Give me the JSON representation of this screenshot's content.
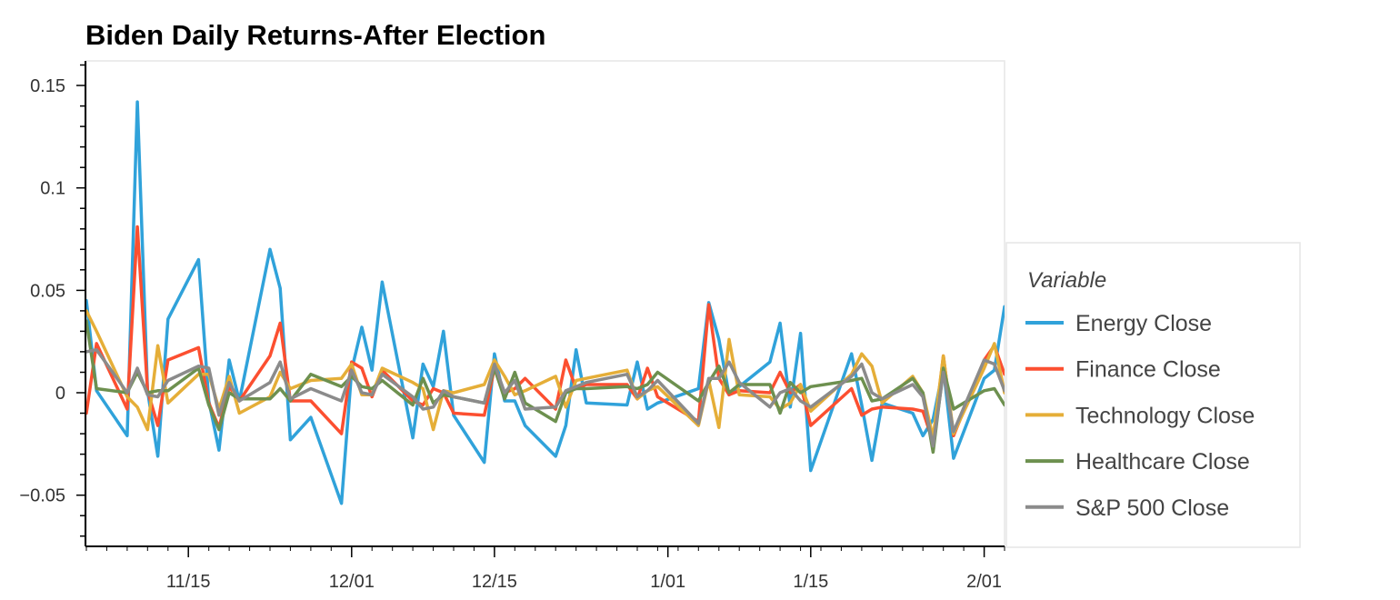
{
  "chart_data": {
    "type": "line",
    "title": "Biden Daily Returns-After Election",
    "xlabel": "",
    "ylabel": "",
    "x_range": [
      "2020-11-05",
      "2021-02-03"
    ],
    "ylim": [
      -0.075,
      0.162
    ],
    "x_ticks": [
      {
        "date": "2020-11-15",
        "label": "11/15"
      },
      {
        "date": "2020-12-01",
        "label": "12/01"
      },
      {
        "date": "2020-12-15",
        "label": "12/15"
      },
      {
        "date": "2021-01-01",
        "label": "1/01"
      },
      {
        "date": "2021-01-15",
        "label": "1/15"
      },
      {
        "date": "2021-02-01",
        "label": "2/01"
      }
    ],
    "y_ticks": [
      {
        "value": 0.15,
        "label": "0.15"
      },
      {
        "value": 0.1,
        "label": "0.1"
      },
      {
        "value": 0.05,
        "label": "0.05"
      },
      {
        "value": 0,
        "label": "0"
      },
      {
        "value": -0.05,
        "label": "−0.05"
      }
    ],
    "grid": false,
    "legend": {
      "title": "Variable",
      "position": "right"
    },
    "x": [
      "2020-11-05",
      "2020-11-06",
      "2020-11-09",
      "2020-11-10",
      "2020-11-11",
      "2020-11-12",
      "2020-11-13",
      "2020-11-16",
      "2020-11-17",
      "2020-11-18",
      "2020-11-19",
      "2020-11-20",
      "2020-11-23",
      "2020-11-24",
      "2020-11-25",
      "2020-11-27",
      "2020-11-30",
      "2020-12-01",
      "2020-12-02",
      "2020-12-03",
      "2020-12-04",
      "2020-12-07",
      "2020-12-08",
      "2020-12-09",
      "2020-12-10",
      "2020-12-11",
      "2020-12-14",
      "2020-12-15",
      "2020-12-16",
      "2020-12-17",
      "2020-12-18",
      "2020-12-21",
      "2020-12-22",
      "2020-12-23",
      "2020-12-24",
      "2020-12-28",
      "2020-12-29",
      "2020-12-30",
      "2020-12-31",
      "2021-01-04",
      "2021-01-05",
      "2021-01-06",
      "2021-01-07",
      "2021-01-08",
      "2021-01-11",
      "2021-01-12",
      "2021-01-13",
      "2021-01-14",
      "2021-01-15",
      "2021-01-19",
      "2021-01-20",
      "2021-01-21",
      "2021-01-22",
      "2021-01-25",
      "2021-01-26",
      "2021-01-27",
      "2021-01-28",
      "2021-01-29",
      "2021-02-01",
      "2021-02-02",
      "2021-02-03"
    ],
    "series": [
      {
        "name": "Energy Close",
        "color": "#30a2da",
        "values": [
          0.045,
          0.001,
          -0.021,
          0.142,
          0.001,
          -0.031,
          0.036,
          0.065,
          -0.004,
          -0.028,
          0.016,
          -0.004,
          0.07,
          0.051,
          -0.023,
          -0.012,
          -0.054,
          0.011,
          0.032,
          0.011,
          0.054,
          -0.022,
          0.014,
          0.003,
          0.03,
          -0.011,
          -0.034,
          0.019,
          -0.004,
          -0.004,
          -0.016,
          -0.031,
          -0.016,
          0.021,
          -0.005,
          -0.006,
          0.015,
          -0.008,
          -0.005,
          0.002,
          0.044,
          0.026,
          -0.001,
          0.003,
          0.015,
          0.034,
          -0.007,
          0.029,
          -0.038,
          0.019,
          -0.006,
          -0.033,
          -0.005,
          -0.01,
          -0.021,
          -0.013,
          0.012,
          -0.032,
          0.007,
          0.011,
          0.042
        ]
      },
      {
        "name": "Finance Close",
        "color": "#fc4f30",
        "values": [
          -0.01,
          0.024,
          -0.008,
          0.081,
          0.001,
          -0.016,
          0.016,
          0.022,
          -0.005,
          -0.017,
          0.003,
          -0.004,
          0.018,
          0.034,
          -0.004,
          -0.004,
          -0.02,
          0.015,
          0.012,
          -0.002,
          0.011,
          -0.004,
          -0.006,
          0.002,
          0.0,
          -0.01,
          -0.011,
          0.012,
          0.0,
          0.002,
          0.007,
          -0.008,
          0.016,
          0.002,
          0.004,
          0.004,
          -0.003,
          0.012,
          -0.002,
          -0.014,
          0.043,
          0.007,
          -0.001,
          0.001,
          0.0,
          0.01,
          0.0,
          0.004,
          -0.016,
          0.002,
          -0.011,
          -0.008,
          -0.007,
          -0.008,
          -0.009,
          -0.024,
          0.018,
          -0.021,
          0.016,
          0.023,
          0.009
        ]
      },
      {
        "name": "Technology Close",
        "color": "#e5ae38",
        "values": [
          0.04,
          0.03,
          -0.002,
          -0.007,
          -0.018,
          0.023,
          -0.005,
          0.009,
          0.009,
          -0.008,
          0.008,
          -0.01,
          -0.002,
          0.01,
          0.002,
          0.006,
          0.007,
          0.014,
          -0.001,
          -0.001,
          0.012,
          0.005,
          0.002,
          -0.018,
          0.001,
          0.0,
          0.004,
          0.016,
          0.008,
          -0.001,
          0.001,
          0.008,
          -0.007,
          0.006,
          0.007,
          0.011,
          -0.003,
          0.001,
          0.003,
          -0.016,
          0.006,
          -0.017,
          0.026,
          -0.001,
          -0.002,
          -0.008,
          -0.005,
          0.004,
          -0.009,
          0.009,
          0.019,
          0.013,
          -0.005,
          0.008,
          0.0,
          -0.022,
          0.018,
          -0.02,
          0.012,
          0.024,
          0.0
        ]
      },
      {
        "name": "Healthcare Close",
        "color": "#6d904f",
        "values": [
          0.035,
          0.002,
          0.0,
          0.01,
          0.0,
          0.001,
          0.001,
          0.012,
          -0.006,
          -0.018,
          0.0,
          -0.003,
          -0.003,
          0.002,
          -0.004,
          0.009,
          0.003,
          0.008,
          0.003,
          0.002,
          0.006,
          -0.006,
          0.007,
          -0.005,
          -0.001,
          -0.002,
          -0.005,
          0.012,
          -0.003,
          0.01,
          -0.005,
          -0.014,
          0.0,
          0.002,
          0.002,
          0.003,
          0.002,
          0.004,
          0.01,
          -0.004,
          0.005,
          0.013,
          0.0,
          0.004,
          0.004,
          -0.01,
          0.005,
          0.0,
          0.003,
          0.006,
          0.007,
          -0.004,
          -0.003,
          0.007,
          0.0,
          -0.029,
          0.012,
          -0.008,
          0.001,
          0.002,
          -0.006
        ]
      },
      {
        "name": "S&P 500 Close",
        "color": "#8b8b8b",
        "values": [
          0.02,
          0.021,
          0.0,
          0.012,
          -0.001,
          -0.002,
          0.006,
          0.013,
          0.012,
          -0.011,
          0.005,
          -0.004,
          0.005,
          0.015,
          -0.003,
          0.002,
          -0.004,
          0.011,
          0.0,
          -0.001,
          0.009,
          -0.002,
          -0.008,
          -0.007,
          0.001,
          -0.002,
          -0.005,
          0.014,
          0.0,
          0.006,
          -0.008,
          -0.007,
          0.001,
          0.003,
          0.005,
          0.009,
          -0.002,
          0.001,
          0.006,
          -0.015,
          0.007,
          0.007,
          0.015,
          0.005,
          -0.007,
          0.0,
          0.002,
          -0.004,
          -0.007,
          0.008,
          0.014,
          0.0,
          -0.003,
          0.004,
          -0.002,
          -0.026,
          0.01,
          -0.019,
          0.016,
          0.014,
          0.001
        ]
      }
    ]
  }
}
